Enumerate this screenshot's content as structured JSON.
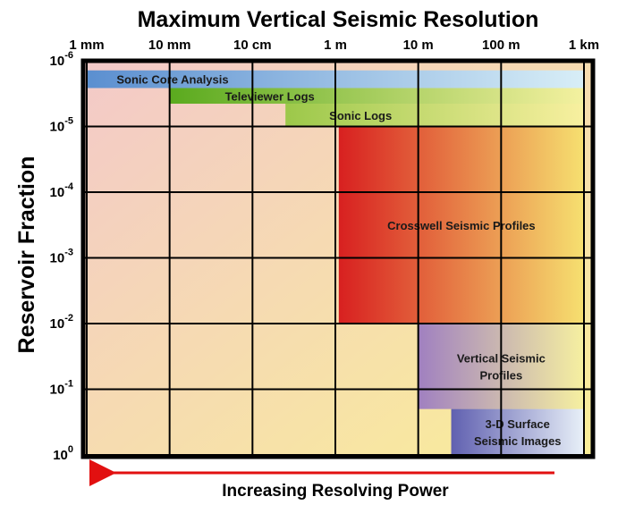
{
  "chart_data": {
    "type": "bar",
    "title": "Maximum Vertical Seismic Resolution",
    "ylabel": "Reservoir Fraction",
    "xlabel": "Increasing Resolving Power",
    "x_ticks": [
      "1 mm",
      "10 mm",
      "10 cm",
      "1 m",
      "10 m",
      "100 m",
      "1 km"
    ],
    "x_tick_values_m": [
      0.001,
      0.01,
      0.1,
      1,
      10,
      100,
      1000
    ],
    "y_ticks": [
      {
        "base": "10",
        "exp": "-6",
        "value": 1e-06
      },
      {
        "base": "10",
        "exp": "-5",
        "value": 1e-05
      },
      {
        "base": "10",
        "exp": "-4",
        "value": 0.0001
      },
      {
        "base": "10",
        "exp": "-3",
        "value": 0.001
      },
      {
        "base": "10",
        "exp": "-2",
        "value": 0.01
      },
      {
        "base": "10",
        "exp": "-1",
        "value": 0.1
      },
      {
        "base": "10",
        "exp": "0",
        "value": 1
      }
    ],
    "x_scale": "log",
    "y_scale": "log",
    "y_inverted": true,
    "grid": true,
    "bands": [
      {
        "name": "Sonic Core Analysis",
        "x_min_m": 0.001,
        "x_max_m": 1000,
        "y_top": 1.4e-06,
        "y_bottom": 2.6e-06,
        "color_start": "#5b8fd0",
        "color_end": "#d8eef7",
        "label_lines": [
          "Sonic Core Analysis"
        ]
      },
      {
        "name": "Televiewer Logs",
        "x_min_m": 0.01,
        "x_max_m": 1000,
        "y_top": 2.6e-06,
        "y_bottom": 4.5e-06,
        "color_start": "#5aaa1e",
        "color_end": "#f4f1a0",
        "label_lines": [
          "Televiewer Logs"
        ]
      },
      {
        "name": "Sonic Logs",
        "x_min_m": 0.25,
        "x_max_m": 1000,
        "y_top": 4.5e-06,
        "y_bottom": 1e-05,
        "color_start": "#9cc84a",
        "color_end": "#f8f0a0",
        "label_lines": [
          "Sonic Logs"
        ]
      },
      {
        "name": "Crosswell Seismic Profiles",
        "x_min_m": 1.1,
        "x_max_m": 1000,
        "y_top": 1e-05,
        "y_bottom": 0.01,
        "color_start": "#d82020",
        "color_end": "#f6e070",
        "label_lines": [
          "Crosswell Seismic Profiles"
        ]
      },
      {
        "name": "Vertical Seismic Profiles",
        "x_min_m": 10,
        "x_max_m": 1000,
        "y_top": 0.01,
        "y_bottom": 0.2,
        "color_start": "#a080c0",
        "color_end": "#f6f0a0",
        "label_lines": [
          "Vertical Seismic",
          "Profiles"
        ]
      },
      {
        "name": "3-D Surface Seismic Images",
        "x_min_m": 25,
        "x_max_m": 1000,
        "y_top": 0.2,
        "y_bottom": 1,
        "color_start": "#6060b0",
        "color_end": "#e8f0f8",
        "label_lines": [
          "3-D Surface",
          "Seismic Images"
        ]
      }
    ],
    "arrow": {
      "direction": "left",
      "color": "#e21010"
    },
    "colors": {
      "background_upper_left": "#f3c9c9",
      "background_lower_right": "#f9ee98",
      "frame": "#000000",
      "grid": "#000000"
    }
  }
}
